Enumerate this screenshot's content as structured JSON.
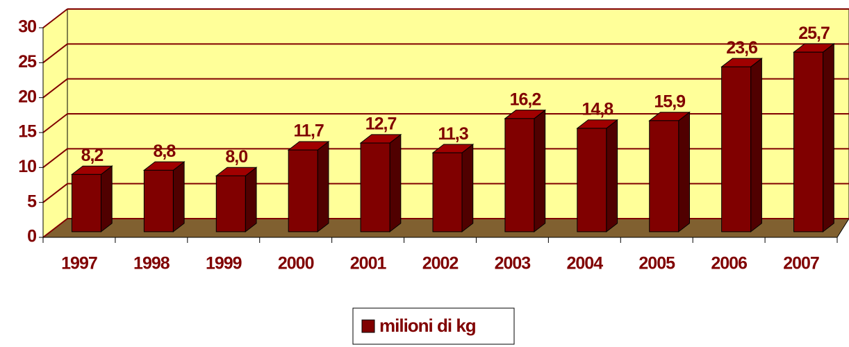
{
  "chart_data": {
    "type": "bar",
    "categories": [
      "1997",
      "1998",
      "1999",
      "2000",
      "2001",
      "2002",
      "2003",
      "2004",
      "2005",
      "2006",
      "2007"
    ],
    "series": [
      {
        "name": "milioni di kg",
        "color": "#800000",
        "values": [
          8.2,
          8.8,
          8.0,
          11.7,
          12.7,
          11.3,
          16.2,
          14.8,
          15.9,
          23.6,
          25.7
        ],
        "value_labels": [
          "8,2",
          "8,8",
          "8,0",
          "11,7",
          "12,7",
          "11,3",
          "16,2",
          "14,8",
          "15,9",
          "23,6",
          "25,7"
        ]
      }
    ],
    "ylim": [
      0,
      30
    ],
    "yticks": [
      0,
      5,
      10,
      15,
      20,
      25,
      30
    ],
    "grid": true,
    "legend": "bottom"
  }
}
